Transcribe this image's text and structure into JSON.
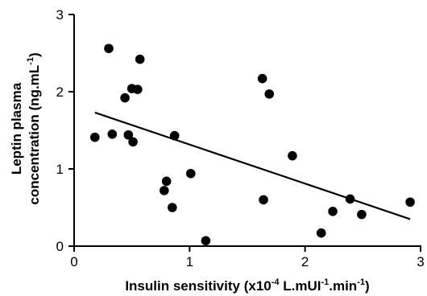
{
  "chart_data": {
    "type": "scatter",
    "xlabel": {
      "prefix": "Insulin sensitivity (x10",
      "exp1": "-4",
      "mid1": " L.mUI",
      "exp2": "-1",
      "mid2": ".min",
      "exp3": "-1",
      "suffix": ")"
    },
    "ylabel": {
      "line1": "Leptin plasma",
      "line2_prefix": "concentration (ng.mL",
      "line2_exp": "-1",
      "line2_suffix": ")"
    },
    "xlim": [
      0,
      3
    ],
    "ylim": [
      0,
      3
    ],
    "x_ticks": [
      0,
      1,
      2,
      3
    ],
    "y_ticks": [
      0,
      1,
      2,
      3
    ],
    "grid": false,
    "points": [
      {
        "x": 0.18,
        "y": 1.41
      },
      {
        "x": 0.3,
        "y": 2.56
      },
      {
        "x": 0.33,
        "y": 1.45
      },
      {
        "x": 0.44,
        "y": 1.92
      },
      {
        "x": 0.47,
        "y": 1.44
      },
      {
        "x": 0.5,
        "y": 2.04
      },
      {
        "x": 0.51,
        "y": 1.35
      },
      {
        "x": 0.55,
        "y": 2.03
      },
      {
        "x": 0.57,
        "y": 2.42
      },
      {
        "x": 0.78,
        "y": 0.72
      },
      {
        "x": 0.8,
        "y": 0.84
      },
      {
        "x": 0.85,
        "y": 0.5
      },
      {
        "x": 0.87,
        "y": 1.43
      },
      {
        "x": 1.01,
        "y": 0.94
      },
      {
        "x": 1.14,
        "y": 0.07
      },
      {
        "x": 1.63,
        "y": 2.17
      },
      {
        "x": 1.64,
        "y": 0.6
      },
      {
        "x": 1.69,
        "y": 1.97
      },
      {
        "x": 1.89,
        "y": 1.17
      },
      {
        "x": 2.14,
        "y": 0.17
      },
      {
        "x": 2.24,
        "y": 0.45
      },
      {
        "x": 2.39,
        "y": 0.61
      },
      {
        "x": 2.49,
        "y": 0.41
      },
      {
        "x": 2.91,
        "y": 0.57
      }
    ],
    "trendline": {
      "x": [
        0.18,
        2.91
      ],
      "y": [
        1.73,
        0.35
      ]
    }
  }
}
